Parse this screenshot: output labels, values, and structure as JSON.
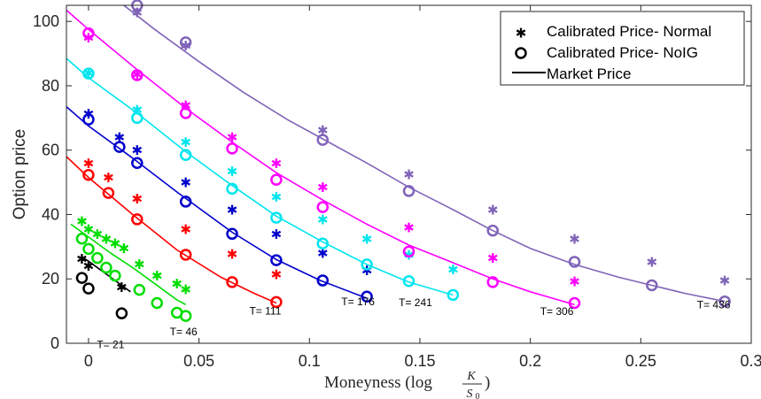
{
  "chart_data": {
    "type": "scatter",
    "title": "",
    "xlabel_prefix": "Moneyness (log ",
    "xlabel_fraction": {
      "numerator": "K",
      "denominator": "S",
      "denominator_subscript": "0"
    },
    "xlabel_suffix": ")",
    "ylabel": "Option price",
    "xlim": [
      -0.01,
      0.3
    ],
    "ylim": [
      0,
      105
    ],
    "x_ticks": [
      {
        "value": 0,
        "label": "0"
      },
      {
        "value": 0.05,
        "label": "0.05"
      },
      {
        "value": 0.1,
        "label": "0.1"
      },
      {
        "value": 0.15,
        "label": "0.15"
      },
      {
        "value": 0.2,
        "label": "0.2"
      },
      {
        "value": 0.25,
        "label": "0.25"
      },
      {
        "value": 0.3,
        "label": "0.3"
      }
    ],
    "y_ticks": [
      {
        "value": 0,
        "label": "0"
      },
      {
        "value": 20,
        "label": "20"
      },
      {
        "value": 40,
        "label": "40"
      },
      {
        "value": 60,
        "label": "60"
      },
      {
        "value": 80,
        "label": "80"
      },
      {
        "value": 100,
        "label": "100"
      }
    ],
    "grid": false,
    "legend": {
      "position": "top-right",
      "entries": [
        {
          "marker": "star",
          "label": "Calibrated Price- Normal"
        },
        {
          "marker": "circle",
          "label": "Calibrated Price- NoIG"
        },
        {
          "marker": "line",
          "label": "Market Price"
        }
      ]
    },
    "series": [
      {
        "label": "T= 21",
        "label_at": [
          0.01,
          -1.5
        ],
        "color": "#000000",
        "market_line": [
          [
            -0.003,
            26.8
          ],
          [
            0,
            25.5
          ],
          [
            0.005,
            23.0
          ],
          [
            0.01,
            20.5
          ],
          [
            0.015,
            18.0
          ],
          [
            0.019,
            16.0
          ]
        ],
        "normal": [
          [
            -0.003,
            26.3
          ],
          [
            0,
            24.0
          ],
          [
            0.015,
            17.5
          ]
        ],
        "noig": [
          [
            -0.003,
            20.3
          ],
          [
            0,
            17.0
          ],
          [
            0.015,
            9.3
          ]
        ]
      },
      {
        "label": "T= 46",
        "label_at": [
          0.043,
          2.5
        ],
        "color": "#00dd00",
        "market_line": [
          [
            -0.008,
            37.0
          ],
          [
            0,
            33.0
          ],
          [
            0.01,
            28.0
          ],
          [
            0.02,
            23.5
          ],
          [
            0.03,
            18.5
          ],
          [
            0.04,
            13.5
          ],
          [
            0.044,
            12.0
          ]
        ],
        "normal": [
          [
            -0.003,
            38.0
          ],
          [
            0,
            35.5
          ],
          [
            0.004,
            34.0
          ],
          [
            0.008,
            32.5
          ],
          [
            0.012,
            31.0
          ],
          [
            0.016,
            29.5
          ],
          [
            0.023,
            24.6
          ],
          [
            0.031,
            21.0
          ],
          [
            0.04,
            18.5
          ],
          [
            0.044,
            16.8
          ]
        ],
        "noig": [
          [
            -0.003,
            32.5
          ],
          [
            0,
            29.3
          ],
          [
            0.004,
            26.5
          ],
          [
            0.008,
            23.5
          ],
          [
            0.012,
            21.0
          ],
          [
            0.023,
            16.6
          ],
          [
            0.031,
            12.5
          ],
          [
            0.04,
            9.5
          ],
          [
            0.044,
            8.5
          ]
        ]
      },
      {
        "label": "T= 111",
        "label_at": [
          0.08,
          9.0
        ],
        "color": "#ff0000",
        "market_line": [
          [
            -0.01,
            58.0
          ],
          [
            0,
            51.5
          ],
          [
            0.02,
            40.0
          ],
          [
            0.04,
            29.0
          ],
          [
            0.06,
            20.5
          ],
          [
            0.075,
            15.5
          ],
          [
            0.085,
            12.5
          ]
        ],
        "normal": [
          [
            0,
            56.0
          ],
          [
            0.009,
            51.5
          ],
          [
            0.022,
            45.0
          ],
          [
            0.044,
            35.5
          ],
          [
            0.065,
            27.8
          ],
          [
            0.085,
            21.5
          ]
        ],
        "noig": [
          [
            0,
            52.3
          ],
          [
            0.009,
            46.7
          ],
          [
            0.022,
            38.5
          ],
          [
            0.044,
            27.5
          ],
          [
            0.065,
            19.0
          ],
          [
            0.085,
            12.8
          ]
        ]
      },
      {
        "label": "T= 176",
        "label_at": [
          0.122,
          11.8
        ],
        "color": "#0000cc",
        "market_line": [
          [
            -0.01,
            73.5
          ],
          [
            0,
            67.5
          ],
          [
            0.02,
            57.5
          ],
          [
            0.04,
            47.0
          ],
          [
            0.065,
            34.5
          ],
          [
            0.085,
            26.0
          ],
          [
            0.105,
            19.5
          ],
          [
            0.126,
            14.0
          ]
        ],
        "normal": [
          [
            0,
            71.3
          ],
          [
            0.014,
            64.0
          ],
          [
            0.022,
            60.0
          ],
          [
            0.044,
            50.0
          ],
          [
            0.065,
            41.5
          ],
          [
            0.085,
            34.0
          ],
          [
            0.106,
            28.0
          ],
          [
            0.126,
            22.7
          ]
        ],
        "noig": [
          [
            0,
            69.5
          ],
          [
            0.014,
            61.0
          ],
          [
            0.022,
            56.0
          ],
          [
            0.044,
            44.0
          ],
          [
            0.065,
            34.0
          ],
          [
            0.085,
            25.8
          ],
          [
            0.106,
            19.5
          ],
          [
            0.126,
            14.5
          ]
        ]
      },
      {
        "label": "T= 241",
        "label_at": [
          0.148,
          11.5
        ],
        "color": "#00e5ee",
        "market_line": [
          [
            -0.01,
            88.5
          ],
          [
            0,
            82.5
          ],
          [
            0.022,
            71.5
          ],
          [
            0.044,
            59.5
          ],
          [
            0.065,
            49.0
          ],
          [
            0.085,
            39.5
          ],
          [
            0.106,
            31.5
          ],
          [
            0.126,
            24.5
          ],
          [
            0.145,
            19.0
          ],
          [
            0.165,
            15.0
          ]
        ],
        "normal": [
          [
            0,
            84.0
          ],
          [
            0.022,
            72.5
          ],
          [
            0.044,
            62.5
          ],
          [
            0.065,
            53.5
          ],
          [
            0.085,
            45.5
          ],
          [
            0.106,
            38.5
          ],
          [
            0.126,
            32.5
          ],
          [
            0.145,
            27.5
          ],
          [
            0.165,
            23.0
          ]
        ],
        "noig": [
          [
            0,
            83.8
          ],
          [
            0.022,
            70.0
          ],
          [
            0.044,
            58.5
          ],
          [
            0.065,
            48.0
          ],
          [
            0.085,
            39.0
          ],
          [
            0.106,
            31.0
          ],
          [
            0.126,
            24.5
          ],
          [
            0.145,
            19.3
          ],
          [
            0.165,
            15.0
          ]
        ]
      },
      {
        "label": "T= 306",
        "label_at": [
          0.212,
          8.8
        ],
        "color": "#ff00ff",
        "market_line": [
          [
            -0.01,
            103.5
          ],
          [
            0,
            97.5
          ],
          [
            0.022,
            85.0
          ],
          [
            0.044,
            73.0
          ],
          [
            0.065,
            62.5
          ],
          [
            0.085,
            53.0
          ],
          [
            0.106,
            44.5
          ],
          [
            0.126,
            37.0
          ],
          [
            0.145,
            30.5
          ],
          [
            0.165,
            25.0
          ],
          [
            0.183,
            20.0
          ],
          [
            0.2,
            16.0
          ],
          [
            0.22,
            12.0
          ]
        ],
        "normal": [
          [
            0,
            95.0
          ],
          [
            0.022,
            83.5
          ],
          [
            0.044,
            74.0
          ],
          [
            0.065,
            64.0
          ],
          [
            0.085,
            56.0
          ],
          [
            0.106,
            48.5
          ],
          [
            0.145,
            36.0
          ],
          [
            0.183,
            26.5
          ],
          [
            0.22,
            19.3
          ]
        ],
        "noig": [
          [
            0,
            96.3
          ],
          [
            0.022,
            83.3
          ],
          [
            0.044,
            71.5
          ],
          [
            0.065,
            60.5
          ],
          [
            0.085,
            50.8
          ],
          [
            0.106,
            42.3
          ],
          [
            0.145,
            28.5
          ],
          [
            0.183,
            19.0
          ],
          [
            0.22,
            12.5
          ]
        ]
      },
      {
        "label": "T= 436",
        "label_at": [
          0.283,
          10.8
        ],
        "color": "#8064b8",
        "market_line": [
          [
            0.016,
            105.0
          ],
          [
            0.03,
            97.5
          ],
          [
            0.05,
            87.5
          ],
          [
            0.07,
            78.0
          ],
          [
            0.09,
            69.5
          ],
          [
            0.106,
            63.5
          ],
          [
            0.126,
            56.0
          ],
          [
            0.145,
            48.5
          ],
          [
            0.165,
            41.5
          ],
          [
            0.183,
            35.0
          ],
          [
            0.2,
            29.5
          ],
          [
            0.22,
            24.5
          ],
          [
            0.24,
            20.5
          ],
          [
            0.255,
            18.0
          ],
          [
            0.27,
            15.5
          ],
          [
            0.288,
            13.0
          ]
        ],
        "normal": [
          [
            0.022,
            102.8
          ],
          [
            0.044,
            92.5
          ],
          [
            0.106,
            66.3
          ],
          [
            0.145,
            52.5
          ],
          [
            0.183,
            41.5
          ],
          [
            0.22,
            32.5
          ],
          [
            0.255,
            25.3
          ],
          [
            0.288,
            19.5
          ]
        ],
        "noig": [
          [
            0.022,
            105.0
          ],
          [
            0.044,
            93.5
          ],
          [
            0.106,
            63.2
          ],
          [
            0.145,
            47.3
          ],
          [
            0.183,
            35.0
          ],
          [
            0.22,
            25.3
          ],
          [
            0.255,
            18.0
          ],
          [
            0.288,
            13.0
          ]
        ]
      }
    ]
  }
}
